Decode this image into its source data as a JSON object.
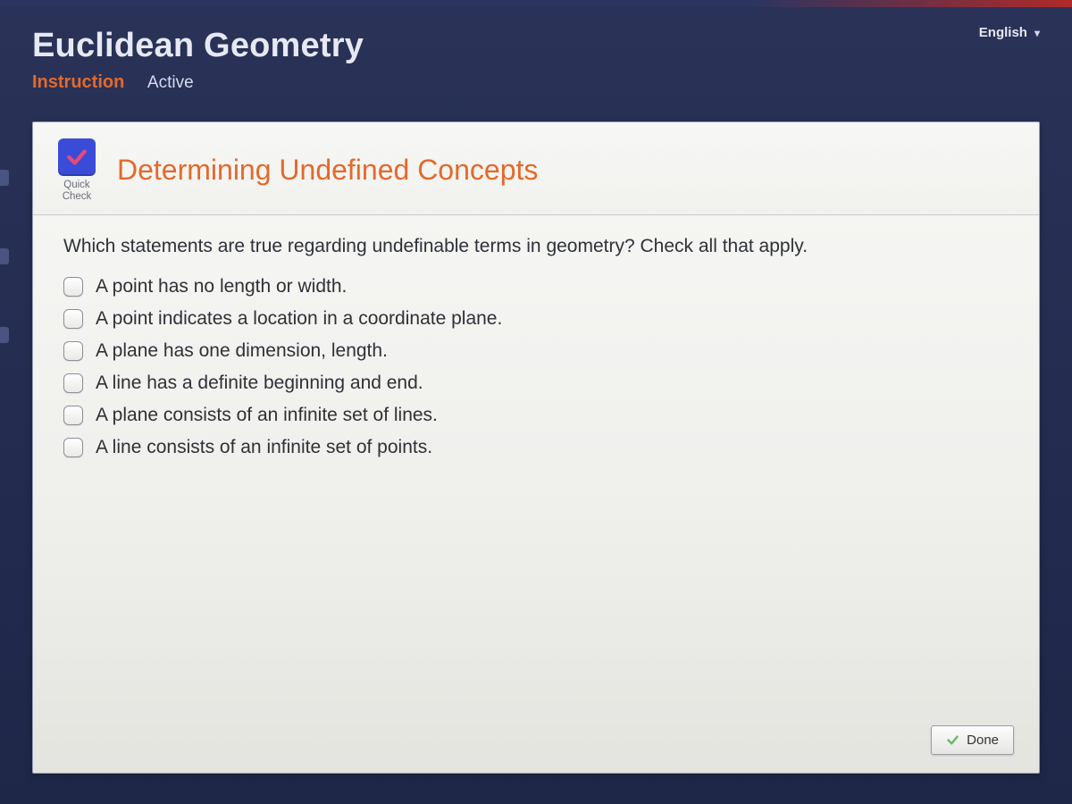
{
  "header": {
    "course_title": "Euclidean Geometry",
    "section_label": "Instruction",
    "status_label": "Active"
  },
  "language": {
    "selected": "English"
  },
  "quickcheck": {
    "label_line1": "Quick",
    "label_line2": "Check",
    "icon_color": "#3a4bd8",
    "check_color": "#d94b6b"
  },
  "panel": {
    "title": "Determining Undefined Concepts",
    "title_color": "#e26a2c"
  },
  "question": {
    "prompt": "Which statements are true regarding undefinable terms in geometry? Check all that apply.",
    "options": [
      "A point has no length or width.",
      "A point indicates a location in a coordinate plane.",
      "A plane has one dimension, length.",
      "A line has a definite beginning and end.",
      "A plane consists of an infinite set of lines.",
      "A line consists of an infinite set of points."
    ]
  },
  "footer": {
    "done_label": "Done",
    "done_check_color": "#5aa85a"
  },
  "colors": {
    "background_top": "#2a3258",
    "background_bottom": "#1e2748",
    "panel_bg": "#f2f2ef",
    "accent": "#e26a2c",
    "text_dark": "#2e3138",
    "header_text": "#e6e9f3"
  }
}
